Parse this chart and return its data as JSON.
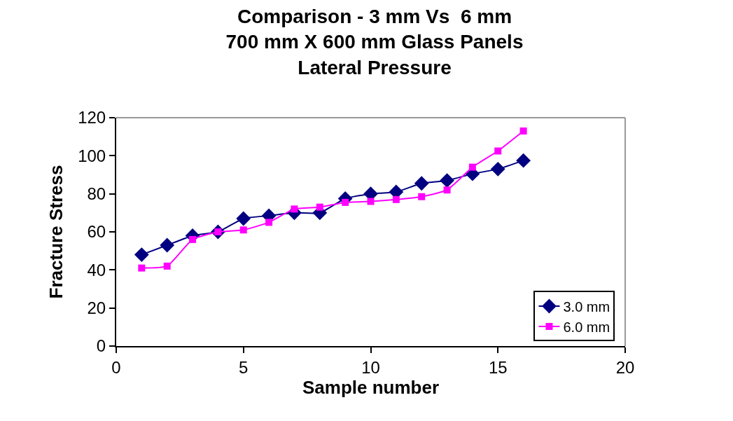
{
  "chart_data": {
    "type": "line",
    "title": "Comparison - 3 mm Vs  6 mm\n700 mm X 600 mm Glass Panels\nLateral Pressure",
    "xlabel": "Sample number",
    "ylabel": "Fracture Stress",
    "x": [
      1,
      2,
      3,
      4,
      5,
      6,
      7,
      8,
      9,
      10,
      11,
      12,
      13,
      14,
      15,
      16
    ],
    "series": [
      {
        "name": "3.0 mm",
        "color": "#000080",
        "marker": "diamond",
        "values": [
          48,
          53,
          58,
          60,
          67,
          68.5,
          70,
          70,
          77.5,
          80,
          81,
          85.5,
          87,
          90.5,
          93,
          97.5
        ]
      },
      {
        "name": "6.0 mm",
        "color": "#ff00ff",
        "marker": "square",
        "values": [
          41,
          42,
          56,
          60,
          61,
          65,
          72,
          73,
          75.5,
          76,
          77,
          78.5,
          82,
          94,
          102.5,
          113
        ]
      }
    ],
    "xlim": [
      0,
      20
    ],
    "xticks": [
      0,
      5,
      10,
      15,
      20
    ],
    "ylim": [
      0,
      120
    ],
    "yticks": [
      0,
      20,
      40,
      60,
      80,
      100,
      120
    ],
    "grid": false,
    "legend": "bottom right",
    "line_style": "solid"
  }
}
